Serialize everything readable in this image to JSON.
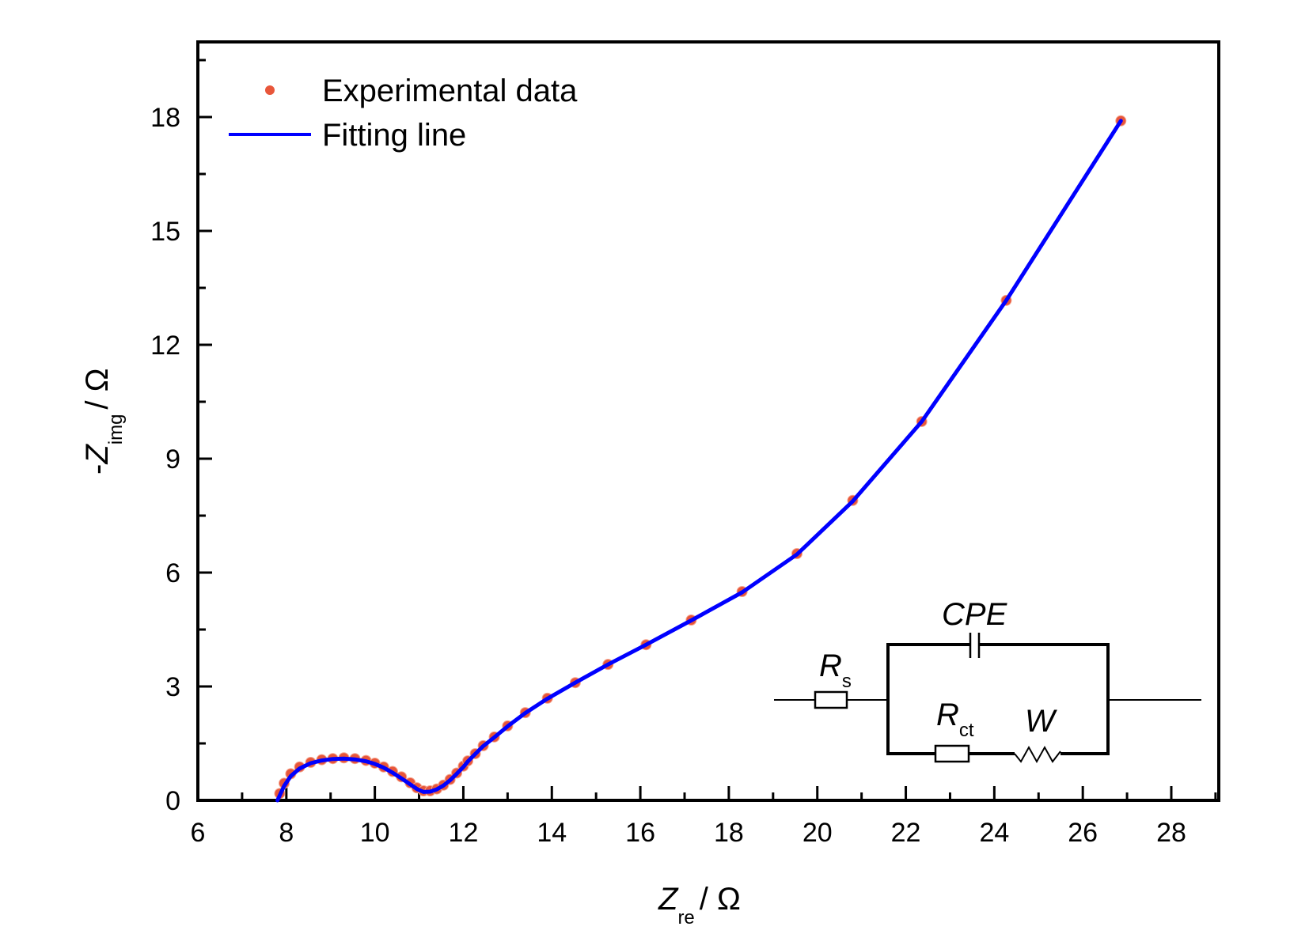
{
  "chart_data": {
    "type": "scatter",
    "title": "",
    "xlabel": {
      "main": "Z",
      "sub": "re",
      "unit": "/ Ω"
    },
    "ylabel": {
      "prefix": "-",
      "main": "Z",
      "sub": "img",
      "unit": "/ Ω"
    },
    "xlim": [
      6,
      29
    ],
    "ylim": [
      0,
      19.5
    ],
    "xticks": [
      6,
      8,
      10,
      12,
      14,
      16,
      18,
      20,
      22,
      24,
      26,
      28
    ],
    "yticks": [
      0,
      3,
      6,
      9,
      12,
      15,
      18
    ],
    "grid": false,
    "legend": {
      "position": "top-left",
      "entries": [
        {
          "label": "Experimental data",
          "marker": "dot",
          "color": "#e8563a"
        },
        {
          "label": "Fitting line",
          "marker": "line",
          "color": "#0000ff"
        }
      ]
    },
    "series": [
      {
        "name": "Experimental data",
        "kind": "scatter",
        "color": "#e8563a",
        "x": [
          7.85,
          7.95,
          8.1,
          8.3,
          8.55,
          8.8,
          9.05,
          9.3,
          9.55,
          9.8,
          10.0,
          10.2,
          10.4,
          10.6,
          10.8,
          10.95,
          11.1,
          11.25,
          11.4,
          11.55,
          11.7,
          11.85,
          12.0,
          12.1,
          12.27,
          12.45,
          12.7,
          13.0,
          13.4,
          13.9,
          14.53,
          15.27,
          16.13,
          17.15,
          18.3,
          19.54,
          20.8,
          22.36,
          24.27,
          26.86
        ],
        "y": [
          0.18,
          0.45,
          0.7,
          0.88,
          1.0,
          1.07,
          1.1,
          1.12,
          1.1,
          1.05,
          0.98,
          0.88,
          0.76,
          0.62,
          0.46,
          0.33,
          0.25,
          0.25,
          0.3,
          0.4,
          0.55,
          0.72,
          0.9,
          1.04,
          1.23,
          1.44,
          1.67,
          1.96,
          2.31,
          2.69,
          3.1,
          3.58,
          4.1,
          4.75,
          5.5,
          6.5,
          7.9,
          9.98,
          13.17,
          17.9
        ]
      },
      {
        "name": "Fitting line",
        "kind": "line",
        "color": "#0000ff",
        "x": [
          7.8,
          7.95,
          8.1,
          8.3,
          8.55,
          8.8,
          9.05,
          9.3,
          9.55,
          9.8,
          10.0,
          10.2,
          10.4,
          10.6,
          10.8,
          10.95,
          11.1,
          11.25,
          11.4,
          11.55,
          11.7,
          11.85,
          12.0,
          12.1,
          12.27,
          12.45,
          12.7,
          13.0,
          13.4,
          13.9,
          14.53,
          15.27,
          16.13,
          17.15,
          18.3,
          19.54,
          20.8,
          22.36,
          24.27,
          26.86
        ],
        "y": [
          0.0,
          0.38,
          0.64,
          0.84,
          0.98,
          1.05,
          1.09,
          1.1,
          1.08,
          1.03,
          0.96,
          0.86,
          0.73,
          0.58,
          0.42,
          0.3,
          0.22,
          0.23,
          0.29,
          0.39,
          0.53,
          0.7,
          0.88,
          1.02,
          1.22,
          1.43,
          1.66,
          1.95,
          2.3,
          2.68,
          3.1,
          3.58,
          4.1,
          4.74,
          5.48,
          6.48,
          7.88,
          9.98,
          13.17,
          17.9
        ]
      }
    ]
  },
  "inset_circuit": {
    "labels": {
      "rs_main": "R",
      "rs_sub": "s",
      "cpe": "CPE",
      "rct_main": "R",
      "rct_sub": "ct",
      "w": "W"
    }
  }
}
